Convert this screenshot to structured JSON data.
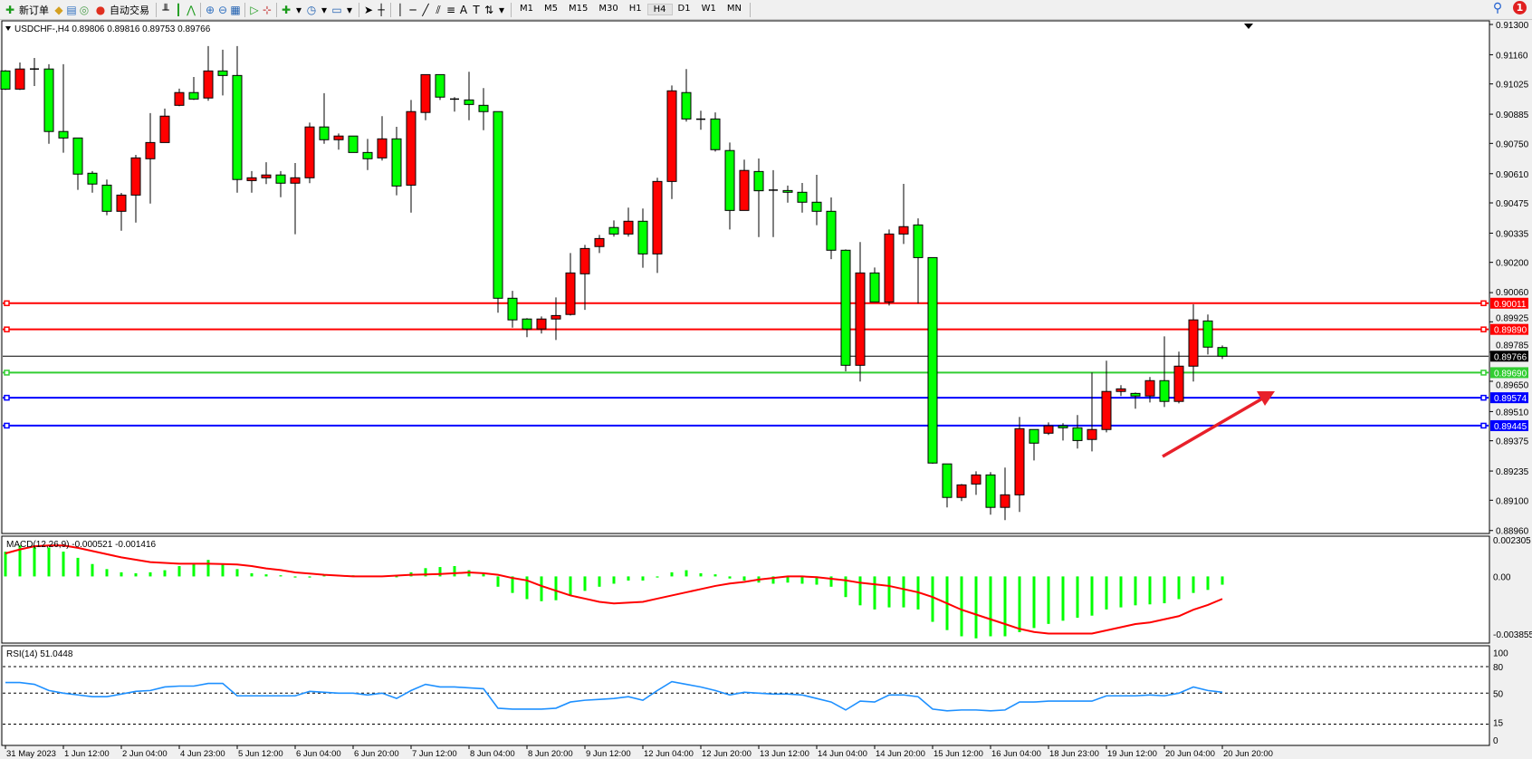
{
  "toolbar": {
    "new_order": "新订单",
    "auto_trading": "自动交易",
    "timeframes": [
      "M1",
      "M5",
      "M15",
      "M30",
      "H1",
      "H4",
      "D1",
      "W1",
      "MN"
    ],
    "active_timeframe": "H4",
    "notification_count": "1"
  },
  "main": {
    "header": "USDCHF-,H4  0.89806 0.89816 0.89753 0.89766"
  },
  "macd": {
    "header": "MACD(12,26,9) -0.000521 -0.001416"
  },
  "rsi": {
    "header": "RSI(14) 51.0448"
  },
  "colors": {
    "bull": "#ff0000",
    "bear": "#00ff00",
    "macd_hist": "#00ff00",
    "macd_signal": "#ff0000",
    "rsi_line": "#1e90ff",
    "arrow": "#e8202a"
  },
  "chart_data": [
    {
      "type": "candlestick",
      "symbol": "USDCHF-",
      "timeframe": "H4",
      "ylim": [
        0.8896,
        0.913
      ],
      "y_ticks": [
        "0.91300",
        "0.91160",
        "0.91025",
        "0.90885",
        "0.90750",
        "0.90610",
        "0.90475",
        "0.90335",
        "0.90200",
        "0.90060",
        "0.89925",
        "0.89785",
        "0.89650",
        "0.89510",
        "0.89375",
        "0.89235",
        "0.89100",
        "0.88960"
      ],
      "x_tick_labels": [
        "31 May 2023",
        "1 Jun 12:00",
        "2 Jun 04:00",
        "4 Jun 23:00",
        "5 Jun 12:00",
        "6 Jun 04:00",
        "6 Jun 20:00",
        "7 Jun 12:00",
        "8 Jun 04:00",
        "8 Jun 20:00",
        "9 Jun 12:00",
        "12 Jun 04:00",
        "12 Jun 20:00",
        "13 Jun 12:00",
        "14 Jun 04:00",
        "14 Jun 20:00",
        "15 Jun 12:00",
        "16 Jun 04:00",
        "18 Jun 23:00",
        "19 Jun 12:00",
        "20 Jun 04:00",
        "20 Jun 20:00"
      ],
      "ohlc_fields": [
        "open",
        "high",
        "low",
        "close"
      ],
      "candles": [
        [
          0.91085,
          0.91089,
          0.90997,
          0.91001
        ],
        [
          0.91001,
          0.91124,
          0.90997,
          0.91094
        ],
        [
          0.91094,
          0.91145,
          0.91015,
          0.91094
        ],
        [
          0.91094,
          0.91116,
          0.90748,
          0.90805
        ],
        [
          0.90805,
          0.91116,
          0.90707,
          0.90775
        ],
        [
          0.90775,
          0.90775,
          0.90535,
          0.90608
        ],
        [
          0.90612,
          0.90622,
          0.90522,
          0.90562
        ],
        [
          0.90557,
          0.90583,
          0.90418,
          0.90436
        ],
        [
          0.90436,
          0.90521,
          0.90346,
          0.90511
        ],
        [
          0.90511,
          0.90697,
          0.90384,
          0.90683
        ],
        [
          0.90679,
          0.9089,
          0.90472,
          0.90754
        ],
        [
          0.90754,
          0.90911,
          0.90754,
          0.90876
        ],
        [
          0.90926,
          0.91003,
          0.90922,
          0.90985
        ],
        [
          0.90985,
          0.91057,
          0.90951,
          0.90955
        ],
        [
          0.9096,
          0.912,
          0.90947,
          0.91085
        ],
        [
          0.91085,
          0.91183,
          0.90972,
          0.91064
        ],
        [
          0.91064,
          0.912,
          0.90522,
          0.90583
        ],
        [
          0.90578,
          0.90622,
          0.90522,
          0.90591
        ],
        [
          0.90591,
          0.90663,
          0.90562,
          0.90604
        ],
        [
          0.90604,
          0.90622,
          0.90501,
          0.90566
        ],
        [
          0.90566,
          0.90659,
          0.9033,
          0.90591
        ],
        [
          0.90591,
          0.90846,
          0.90566,
          0.90826
        ],
        [
          0.90826,
          0.90982,
          0.90748,
          0.90767
        ],
        [
          0.90767,
          0.90796,
          0.90721,
          0.90784
        ],
        [
          0.90784,
          0.90784,
          0.90708,
          0.90708
        ],
        [
          0.90708,
          0.90771,
          0.90627,
          0.90679
        ],
        [
          0.90683,
          0.90876,
          0.90671,
          0.90771
        ],
        [
          0.90771,
          0.90827,
          0.9051,
          0.90553
        ],
        [
          0.90557,
          0.90951,
          0.9043,
          0.90897
        ],
        [
          0.90893,
          0.91068,
          0.90857,
          0.91068
        ],
        [
          0.91068,
          0.91068,
          0.90951,
          0.90964
        ],
        [
          0.90955,
          0.90964,
          0.90897,
          0.90955
        ],
        [
          0.90951,
          0.91081,
          0.90857,
          0.9093
        ],
        [
          0.90926,
          0.91006,
          0.90811,
          0.90897
        ],
        [
          0.90897,
          0.90897,
          0.89967,
          0.90034
        ],
        [
          0.90034,
          0.90068,
          0.89898,
          0.89934
        ],
        [
          0.89938,
          0.89942,
          0.89854,
          0.89892
        ],
        [
          0.89892,
          0.8995,
          0.89871,
          0.89938
        ],
        [
          0.89938,
          0.90038,
          0.89841,
          0.89954
        ],
        [
          0.89959,
          0.90243,
          0.89954,
          0.90151
        ],
        [
          0.90147,
          0.90281,
          0.8998,
          0.90264
        ],
        [
          0.90273,
          0.90327,
          0.90243,
          0.9031
        ],
        [
          0.90361,
          0.90394,
          0.90319,
          0.90331
        ],
        [
          0.90331,
          0.90453,
          0.90319,
          0.9039
        ],
        [
          0.9039,
          0.90449,
          0.90175,
          0.90239
        ],
        [
          0.90239,
          0.90591,
          0.90151,
          0.90574
        ],
        [
          0.90574,
          0.91018,
          0.90493,
          0.90993
        ],
        [
          0.90985,
          0.91094,
          0.90851,
          0.90863
        ],
        [
          0.90862,
          0.90901,
          0.90813,
          0.90862
        ],
        [
          0.90863,
          0.90893,
          0.90712,
          0.90721
        ],
        [
          0.90717,
          0.90754,
          0.90352,
          0.9044
        ],
        [
          0.9044,
          0.90675,
          0.9044,
          0.90625
        ],
        [
          0.9062,
          0.9068,
          0.90317,
          0.90531
        ],
        [
          0.90534,
          0.90626,
          0.90317,
          0.90534
        ],
        [
          0.90532,
          0.90555,
          0.90476,
          0.90524
        ],
        [
          0.90524,
          0.90567,
          0.9043,
          0.90478
        ],
        [
          0.90478,
          0.90605,
          0.90372,
          0.90436
        ],
        [
          0.90436,
          0.905,
          0.90215,
          0.90256
        ],
        [
          0.90256,
          0.9026,
          0.89696,
          0.89724
        ],
        [
          0.89724,
          0.90294,
          0.89649,
          0.90151
        ],
        [
          0.90151,
          0.90176,
          0.90017,
          0.90017
        ],
        [
          0.90017,
          0.90352,
          0.9,
          0.90331
        ],
        [
          0.90331,
          0.90563,
          0.90285,
          0.90365
        ],
        [
          0.90373,
          0.90403,
          0.90009,
          0.90222
        ],
        [
          0.90222,
          0.90222,
          0.89269,
          0.89272
        ],
        [
          0.89268,
          0.89268,
          0.89067,
          0.89113
        ],
        [
          0.89113,
          0.89175,
          0.89096,
          0.89171
        ],
        [
          0.89175,
          0.89234,
          0.89125,
          0.89217
        ],
        [
          0.89217,
          0.8923,
          0.89033,
          0.89067
        ],
        [
          0.89067,
          0.89251,
          0.89008,
          0.89125
        ],
        [
          0.89125,
          0.89485,
          0.89046,
          0.89431
        ],
        [
          0.89427,
          0.89427,
          0.89284,
          0.89364
        ],
        [
          0.8941,
          0.8946,
          0.89402,
          0.89444
        ],
        [
          0.89444,
          0.89456,
          0.89376,
          0.89435
        ],
        [
          0.89435,
          0.89494,
          0.89339,
          0.89376
        ],
        [
          0.89381,
          0.89691,
          0.89326,
          0.89427
        ],
        [
          0.89427,
          0.89745,
          0.89414,
          0.89603
        ],
        [
          0.89603,
          0.89632,
          0.89582,
          0.89615
        ],
        [
          0.89594,
          0.89598,
          0.89523,
          0.89582
        ],
        [
          0.89582,
          0.8967,
          0.89552,
          0.89653
        ],
        [
          0.89653,
          0.89858,
          0.89531,
          0.89557
        ],
        [
          0.89557,
          0.89787,
          0.89548,
          0.8972
        ],
        [
          0.8972,
          0.90006,
          0.89649,
          0.89934
        ],
        [
          0.89929,
          0.89959,
          0.89774,
          0.89808
        ],
        [
          0.89806,
          0.89816,
          0.89753,
          0.89766
        ]
      ],
      "horizontal_lines": [
        {
          "price": "0.90011",
          "color": "#ff0000"
        },
        {
          "price": "0.89890",
          "color": "#ff0000"
        },
        {
          "price": "0.89766",
          "color": "#000000",
          "kind": "bid"
        },
        {
          "price": "0.89690",
          "color": "#32cd32"
        },
        {
          "price": "0.89574",
          "color": "#0000ff"
        },
        {
          "price": "0.89445",
          "color": "#0000ff"
        }
      ],
      "annotations": [
        {
          "type": "arrow",
          "direction": "up-right",
          "color": "#e8202a"
        }
      ]
    },
    {
      "type": "bar+line",
      "indicator": "MACD(12,26,9)",
      "ylim": [
        -0.003855,
        0.002305
      ],
      "y_ticks": [
        "0.002305",
        "0.00",
        "-0.003855"
      ],
      "histogram": [
        0.00156,
        0.00195,
        0.00195,
        0.00182,
        0.00156,
        0.00117,
        0.00078,
        0.00046,
        0.00026,
        0.0002,
        0.00026,
        0.00039,
        0.00065,
        0.00085,
        0.00104,
        0.00078,
        0.00046,
        0.0002,
        0.00013,
        7e-05,
        -7e-05,
        -7e-05,
        7e-05,
        7e-05,
        7e-05,
        3e-05,
        3e-05,
        -3e-05,
        0.00026,
        0.00052,
        0.00059,
        0.00065,
        0.00039,
        0.0002,
        -0.00065,
        -0.00104,
        -0.00143,
        -0.00156,
        -0.0015,
        -0.00117,
        -0.00091,
        -0.00065,
        -0.00046,
        -0.00026,
        -0.00026,
        -7e-05,
        0.00026,
        0.00039,
        0.0002,
        0.00013,
        -0.00013,
        -0.00026,
        -0.00039,
        -0.00046,
        -0.00039,
        -0.00046,
        -0.00052,
        -0.00065,
        -0.0013,
        -0.00182,
        -0.00208,
        -0.00195,
        -0.00195,
        -0.00208,
        -0.00286,
        -0.00338,
        -0.00377,
        -0.0039,
        -0.00377,
        -0.00377,
        -0.00351,
        -0.00325,
        -0.00299,
        -0.00279,
        -0.0026,
        -0.00247,
        -0.00208,
        -0.00195,
        -0.00182,
        -0.00176,
        -0.00169,
        -0.00143,
        -0.00104,
        -0.00085,
        -0.000521
      ],
      "signal": [
        0.00145,
        0.0017,
        0.0019,
        0.00195,
        0.00195,
        0.0018,
        0.0016,
        0.0014,
        0.0012,
        0.00105,
        0.0009,
        0.00085,
        0.0008,
        0.0008,
        0.0008,
        0.00078,
        0.00075,
        0.00065,
        0.0005,
        0.0004,
        0.00025,
        0.00018,
        0.0001,
        5e-05,
        0,
        0,
        0,
        5e-05,
        0.0001,
        0.00012,
        0.00015,
        0.0002,
        0.00025,
        0.0002,
        0.0001,
        -0.0001,
        -0.00025,
        -0.0006,
        -0.0009,
        -0.0012,
        -0.0014,
        -0.0016,
        -0.0017,
        -0.00165,
        -0.0016,
        -0.0014,
        -0.0012,
        -0.001,
        -0.0008,
        -0.0006,
        -0.00045,
        -0.00035,
        -0.0002,
        -0.0001,
        0,
        0,
        -5e-05,
        -0.00015,
        -0.00025,
        -0.0004,
        -0.0005,
        -0.0006,
        -0.0008,
        -0.001,
        -0.0013,
        -0.0017,
        -0.0021,
        -0.0024,
        -0.0027,
        -0.003,
        -0.0033,
        -0.0035,
        -0.0036,
        -0.0036,
        -0.0036,
        -0.0036,
        -0.0034,
        -0.0032,
        -0.003,
        -0.0029,
        -0.0027,
        -0.0025,
        -0.0021,
        -0.0018,
        -0.001416
      ]
    },
    {
      "type": "line",
      "indicator": "RSI(14)",
      "ylim": [
        0,
        100
      ],
      "y_ticks": [
        "100",
        "80",
        "50",
        "15",
        "0"
      ],
      "levels": [
        80,
        50,
        15
      ],
      "values": [
        62,
        62,
        60,
        53,
        50,
        48,
        46,
        46,
        49,
        52,
        53,
        57,
        58,
        58,
        61,
        61,
        47,
        47,
        47,
        47,
        47,
        52,
        51,
        50,
        50,
        48,
        50,
        44,
        53,
        60,
        57,
        57,
        56,
        55,
        33,
        32,
        32,
        32,
        33,
        40,
        42,
        43,
        44,
        46,
        42,
        53,
        63,
        60,
        57,
        53,
        48,
        51,
        50,
        49,
        49,
        48,
        44,
        40,
        31,
        41,
        40,
        48,
        48,
        46,
        32,
        30,
        31,
        31,
        30,
        31,
        40,
        40,
        41,
        41,
        41,
        41,
        47,
        47,
        47,
        48,
        47,
        50,
        57,
        53,
        51.0448
      ]
    }
  ]
}
